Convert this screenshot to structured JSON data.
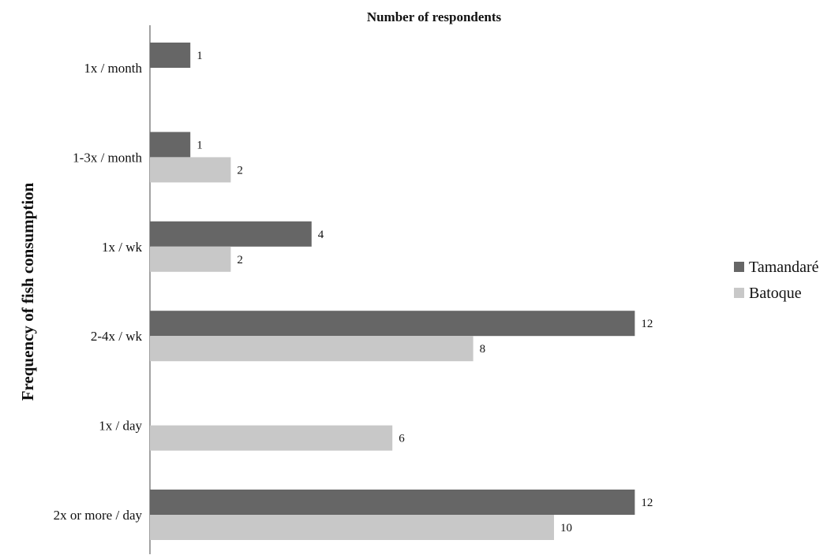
{
  "chart_data": {
    "type": "bar",
    "orientation": "horizontal",
    "title": "Number of respondents",
    "ylabel": "Frequency of fish consumption",
    "xlabel": "",
    "categories": [
      "1x / month",
      "1-3x / month",
      "1x / wk",
      "2-4x / wk",
      "1x / day",
      "2x or more / day"
    ],
    "series": [
      {
        "name": "Tamandaré",
        "values": [
          1,
          1,
          4,
          12,
          null,
          12
        ],
        "color": "#666666"
      },
      {
        "name": "Batoque",
        "values": [
          null,
          2,
          2,
          8,
          6,
          10
        ],
        "color": "#c8c8c8"
      }
    ],
    "xlim": [
      0,
      12
    ],
    "grid": false,
    "data_labels": true,
    "legend_position": "right"
  }
}
